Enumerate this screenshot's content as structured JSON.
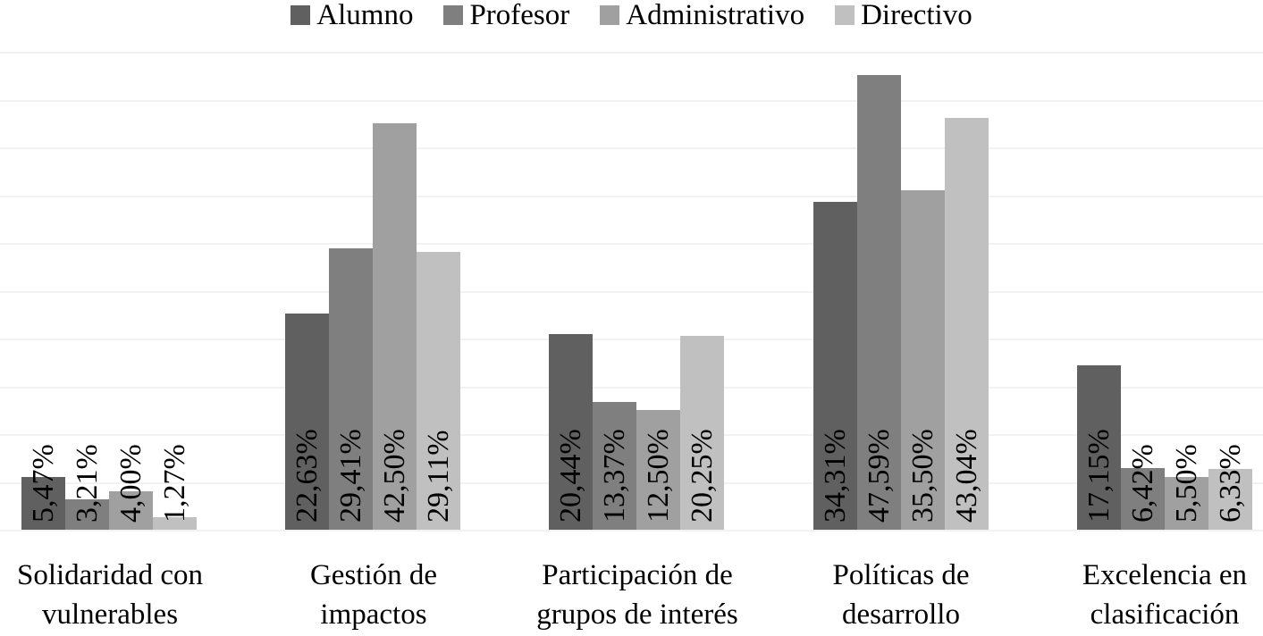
{
  "legend": {
    "items": [
      {
        "label": "Alumno",
        "color": "#606060"
      },
      {
        "label": "Profesor",
        "color": "#7f7f7f"
      },
      {
        "label": "Administrativo",
        "color": "#a0a0a0"
      },
      {
        "label": "Directivo",
        "color": "#c0c0c0"
      }
    ]
  },
  "categories": [
    {
      "line1": "Solidaridad con",
      "line2": "vulnerables"
    },
    {
      "line1": "Gestión de",
      "line2": "impactos"
    },
    {
      "line1": "Participación de",
      "line2": "grupos de interés"
    },
    {
      "line1": "Políticas de",
      "line2": "desarrollo"
    },
    {
      "line1": "Excelencia en",
      "line2": "clasificación"
    }
  ],
  "labels": {
    "c0": [
      "5,47%",
      "3,21%",
      "4,00%",
      "1,27%"
    ],
    "c1": [
      "22,63%",
      "29,41%",
      "42,50%",
      "29,11%"
    ],
    "c2": [
      "20,44%",
      "13,37%",
      "12,50%",
      "20,25%"
    ],
    "c3": [
      "34,31%",
      "47,59%",
      "35,50%",
      "43,04%"
    ],
    "c4": [
      "17,15%",
      "6,42%",
      "5,50%",
      "6,33%"
    ]
  },
  "chart_data": {
    "type": "bar",
    "title": "",
    "xlabel": "",
    "ylabel": "",
    "categories": [
      "Solidaridad con vulnerables",
      "Gestión de impactos",
      "Participación de grupos de interés",
      "Políticas de desarrollo",
      "Excelencia en clasificación"
    ],
    "series": [
      {
        "name": "Alumno",
        "color": "#606060",
        "values": [
          5.47,
          22.63,
          20.44,
          34.31,
          17.15
        ]
      },
      {
        "name": "Profesor",
        "color": "#7f7f7f",
        "values": [
          3.21,
          29.41,
          13.37,
          47.59,
          6.42
        ]
      },
      {
        "name": "Administrativo",
        "color": "#a0a0a0",
        "values": [
          4.0,
          42.5,
          12.5,
          35.5,
          5.5
        ]
      },
      {
        "name": "Directivo",
        "color": "#c0c0c0",
        "values": [
          1.27,
          29.11,
          20.25,
          43.04,
          6.33
        ]
      }
    ],
    "ylim": [
      0,
      50
    ],
    "grid": true,
    "gridline_step": 5,
    "y_axis_visible": false,
    "data_labels": "rotated vertical, inside bar end",
    "legend_position": "top"
  }
}
